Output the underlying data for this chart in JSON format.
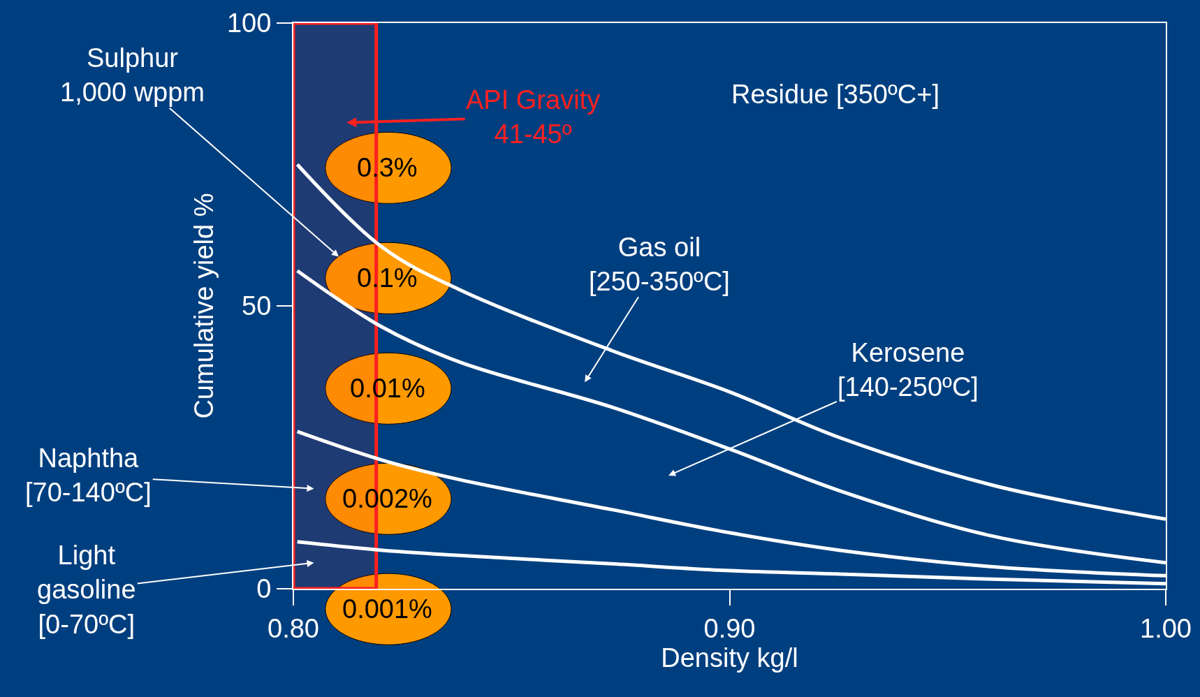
{
  "chart_data": {
    "type": "line",
    "xlabel": "Density kg/l",
    "ylabel": "Cumulative yield %",
    "series": [
      {
        "color": "#ffffff",
        "x": [
          0.8009,
          0.8205,
          0.838,
          0.873,
          0.9,
          0.9253,
          0.9603,
          1.0
        ],
        "values": [
          75.0,
          60.3,
          52.9,
          42.1,
          34.8,
          26.7,
          18.3,
          12.3
        ]
      },
      {
        "color": "#ffffff",
        "x": [
          0.8009,
          0.8205,
          0.838,
          0.873,
          0.9,
          0.9253,
          0.9603,
          1.0
        ],
        "values": [
          56.2,
          46.2,
          40.1,
          32.1,
          24.7,
          17.3,
          9.3,
          4.6
        ]
      },
      {
        "color": "#ffffff",
        "x": [
          0.8009,
          0.8205,
          0.838,
          0.873,
          0.9,
          0.9253,
          0.9603,
          1.0
        ],
        "values": [
          27.8,
          22.7,
          19.3,
          14.0,
          9.9,
          6.8,
          3.9,
          2.3
        ]
      },
      {
        "color": "#ffffff",
        "x": [
          0.8009,
          0.8205,
          0.838,
          0.873,
          0.9,
          0.9253,
          0.9603,
          1.0
        ],
        "values": [
          8.3,
          6.8,
          5.9,
          4.4,
          3.2,
          2.6,
          1.7,
          0.9
        ]
      }
    ],
    "xlim": [
      0.8,
      1.0
    ],
    "xticks": [
      {
        "value": 0.8,
        "label": "0.80"
      },
      {
        "value": 0.9,
        "label": "0.90"
      },
      {
        "value": 1.0,
        "label": "1.00"
      }
    ],
    "ylim": [
      0,
      100
    ],
    "yticks": [
      0,
      50,
      100
    ],
    "grid": false,
    "marker": "none",
    "line_style": "solid",
    "bands": [
      {
        "axis": "x",
        "from": 0.8,
        "to": 0.819,
        "label": "API Gravity\n41-45º",
        "color": "#ff2020"
      }
    ],
    "annotations": [
      "Sulphur\n1,000 wppm",
      "Gas oil\n[250-350ºC]",
      "Kerosene\n[140-250ºC]",
      "Naphtha\n[70-140ºC]",
      "Light\ngasoline\n[0-70ºC]",
      "Residue [350ºC+]",
      "0.3%",
      "0.1%",
      "0.01%",
      "0.002%",
      "0.001%"
    ]
  }
}
